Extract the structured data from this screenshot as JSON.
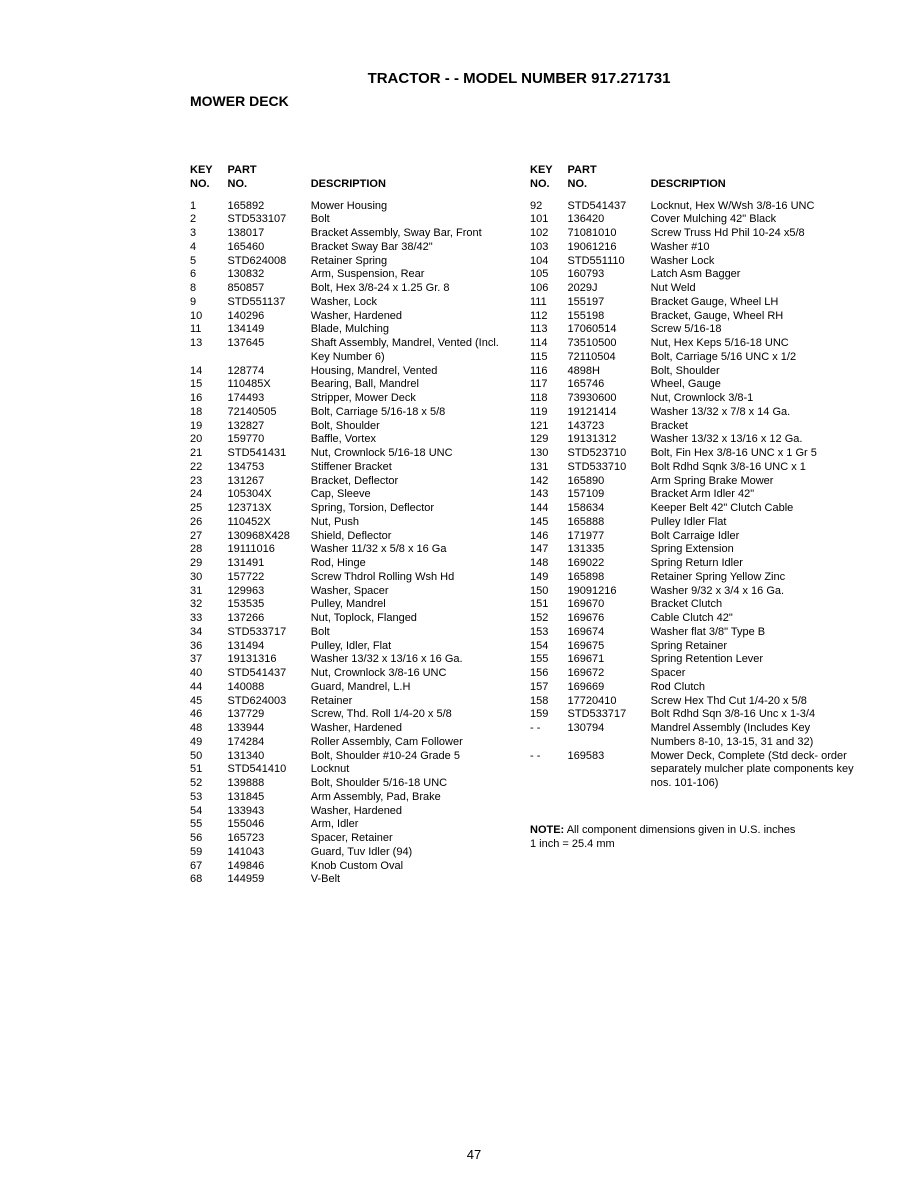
{
  "title": "TRACTOR - - MODEL NUMBER 917.271731",
  "subtitle": "MOWER DECK",
  "headers": {
    "key": "KEY NO.",
    "part": "PART NO.",
    "desc": "DESCRIPTION"
  },
  "page_number": "47",
  "note_line1": "NOTE: All component dimensions given in U.S. inches",
  "note_line2": "1 inch = 25.4 mm",
  "left": [
    {
      "key": "1",
      "part": "165892",
      "desc": "Mower Housing"
    },
    {
      "key": "2",
      "part": "STD533107",
      "desc": "Bolt"
    },
    {
      "key": "3",
      "part": "138017",
      "desc": "Bracket Assembly, Sway Bar, Front"
    },
    {
      "key": "4",
      "part": "165460",
      "desc": "Bracket Sway Bar 38/42\""
    },
    {
      "key": "5",
      "part": "STD624008",
      "desc": "Retainer Spring"
    },
    {
      "key": "6",
      "part": "130832",
      "desc": "Arm, Suspension, Rear"
    },
    {
      "key": "8",
      "part": "850857",
      "desc": "Bolt, Hex 3/8-24 x 1.25 Gr. 8"
    },
    {
      "key": "9",
      "part": "STD551137",
      "desc": "Washer, Lock"
    },
    {
      "key": "10",
      "part": "140296",
      "desc": "Washer, Hardened"
    },
    {
      "key": "11",
      "part": "134149",
      "desc": "Blade, Mulching"
    },
    {
      "key": "13",
      "part": "137645",
      "desc": "Shaft Assembly, Mandrel, Vented (Incl. Key Number 6)"
    },
    {
      "key": "14",
      "part": "128774",
      "desc": "Housing, Mandrel, Vented"
    },
    {
      "key": "15",
      "part": "110485X",
      "desc": "Bearing, Ball, Mandrel"
    },
    {
      "key": "16",
      "part": "174493",
      "desc": "Stripper, Mower Deck"
    },
    {
      "key": "18",
      "part": "72140505",
      "desc": "Bolt, Carriage 5/16-18 x 5/8"
    },
    {
      "key": "19",
      "part": "132827",
      "desc": "Bolt, Shoulder"
    },
    {
      "key": "20",
      "part": "159770",
      "desc": "Baffle, Vortex"
    },
    {
      "key": "21",
      "part": "STD541431",
      "desc": "Nut, Crownlock 5/16-18 UNC"
    },
    {
      "key": "22",
      "part": "134753",
      "desc": "Stiffener Bracket"
    },
    {
      "key": "23",
      "part": "131267",
      "desc": "Bracket, Deflector"
    },
    {
      "key": "24",
      "part": "105304X",
      "desc": "Cap, Sleeve"
    },
    {
      "key": "25",
      "part": "123713X",
      "desc": "Spring, Torsion, Deflector"
    },
    {
      "key": "26",
      "part": "110452X",
      "desc": "Nut, Push"
    },
    {
      "key": "27",
      "part": "130968X428",
      "desc": "Shield, Deflector"
    },
    {
      "key": "28",
      "part": "19111016",
      "desc": "Washer 11/32 x 5/8 x 16 Ga"
    },
    {
      "key": "29",
      "part": "131491",
      "desc": "Rod, Hinge"
    },
    {
      "key": "30",
      "part": "157722",
      "desc": "Screw Thdrol Rolling Wsh Hd"
    },
    {
      "key": "31",
      "part": "129963",
      "desc": "Washer, Spacer"
    },
    {
      "key": "32",
      "part": "153535",
      "desc": "Pulley, Mandrel"
    },
    {
      "key": "33",
      "part": "137266",
      "desc": "Nut, Toplock, Flanged"
    },
    {
      "key": "34",
      "part": "STD533717",
      "desc": "Bolt"
    },
    {
      "key": "36",
      "part": "131494",
      "desc": "Pulley, Idler, Flat"
    },
    {
      "key": "37",
      "part": "19131316",
      "desc": "Washer 13/32 x 13/16 x 16 Ga."
    },
    {
      "key": "40",
      "part": "STD541437",
      "desc": "Nut, Crownlock 3/8-16 UNC"
    },
    {
      "key": "44",
      "part": "140088",
      "desc": "Guard, Mandrel, L.H"
    },
    {
      "key": "45",
      "part": "STD624003",
      "desc": "Retainer"
    },
    {
      "key": "46",
      "part": "137729",
      "desc": "Screw, Thd. Roll 1/4-20 x 5/8"
    },
    {
      "key": "48",
      "part": "133944",
      "desc": "Washer, Hardened"
    },
    {
      "key": "49",
      "part": "174284",
      "desc": "Roller Assembly, Cam Follower"
    },
    {
      "key": "50",
      "part": "131340",
      "desc": "Bolt, Shoulder #10-24 Grade 5"
    },
    {
      "key": "51",
      "part": "STD541410",
      "desc": "Locknut"
    },
    {
      "key": "52",
      "part": "139888",
      "desc": "Bolt, Shoulder 5/16-18 UNC"
    },
    {
      "key": "53",
      "part": "131845",
      "desc": "Arm Assembly, Pad, Brake"
    },
    {
      "key": "54",
      "part": "133943",
      "desc": "Washer, Hardened"
    },
    {
      "key": "55",
      "part": "155046",
      "desc": "Arm, Idler"
    },
    {
      "key": "56",
      "part": "165723",
      "desc": "Spacer, Retainer"
    },
    {
      "key": "59",
      "part": "141043",
      "desc": "Guard, Tuv Idler (94)"
    },
    {
      "key": "67",
      "part": "149846",
      "desc": "Knob Custom Oval"
    },
    {
      "key": "68",
      "part": "144959",
      "desc": "V-Belt"
    }
  ],
  "right": [
    {
      "key": "92",
      "part": "STD541437",
      "desc": "Locknut, Hex W/Wsh 3/8-16 UNC"
    },
    {
      "key": "101",
      "part": "136420",
      "desc": "Cover Mulching 42\" Black"
    },
    {
      "key": "102",
      "part": "71081010",
      "desc": "Screw Truss Hd Phil 10-24 x5/8"
    },
    {
      "key": "103",
      "part": "19061216",
      "desc": "Washer #10"
    },
    {
      "key": "104",
      "part": "STD551110",
      "desc": "Washer Lock"
    },
    {
      "key": "105",
      "part": "160793",
      "desc": "Latch Asm Bagger"
    },
    {
      "key": "106",
      "part": "2029J",
      "desc": "Nut Weld"
    },
    {
      "key": "111",
      "part": "155197",
      "desc": "Bracket Gauge, Wheel LH"
    },
    {
      "key": "112",
      "part": "155198",
      "desc": "Bracket, Gauge, Wheel RH"
    },
    {
      "key": "113",
      "part": "17060514",
      "desc": "Screw 5/16-18"
    },
    {
      "key": "114",
      "part": "73510500",
      "desc": "Nut, Hex Keps 5/16-18 UNC"
    },
    {
      "key": "115",
      "part": "72110504",
      "desc": "Bolt, Carriage 5/16 UNC x 1/2"
    },
    {
      "key": "116",
      "part": "4898H",
      "desc": "Bolt, Shoulder"
    },
    {
      "key": "117",
      "part": "165746",
      "desc": "Wheel, Gauge"
    },
    {
      "key": "118",
      "part": "73930600",
      "desc": "Nut, Crownlock 3/8-1"
    },
    {
      "key": "119",
      "part": "19121414",
      "desc": "Washer 13/32 x 7/8 x 14 Ga."
    },
    {
      "key": "121",
      "part": "143723",
      "desc": "Bracket"
    },
    {
      "key": "129",
      "part": "19131312",
      "desc": "Washer 13/32 x 13/16 x 12 Ga."
    },
    {
      "key": "130",
      "part": "STD523710",
      "desc": "Bolt, Fin Hex 3/8-16 UNC x 1 Gr 5"
    },
    {
      "key": "131",
      "part": "STD533710",
      "desc": "Bolt Rdhd Sqnk 3/8-16 UNC x 1"
    },
    {
      "key": "142",
      "part": "165890",
      "desc": "Arm Spring Brake Mower"
    },
    {
      "key": "143",
      "part": "157109",
      "desc": "Bracket Arm Idler 42\""
    },
    {
      "key": "144",
      "part": "158634",
      "desc": "Keeper Belt 42\" Clutch Cable"
    },
    {
      "key": "145",
      "part": "165888",
      "desc": "Pulley Idler Flat"
    },
    {
      "key": "146",
      "part": "171977",
      "desc": "Bolt Carraige Idler"
    },
    {
      "key": "147",
      "part": "131335",
      "desc": "Spring Extension"
    },
    {
      "key": "148",
      "part": "169022",
      "desc": "Spring Return Idler"
    },
    {
      "key": "149",
      "part": "165898",
      "desc": "Retainer Spring Yellow Zinc"
    },
    {
      "key": "150",
      "part": "19091216",
      "desc": "Washer 9/32 x 3/4 x 16 Ga."
    },
    {
      "key": "151",
      "part": "169670",
      "desc": "Bracket Clutch"
    },
    {
      "key": "152",
      "part": "169676",
      "desc": "Cable Clutch 42\""
    },
    {
      "key": "153",
      "part": "169674",
      "desc": "Washer flat 3/8\" Type B"
    },
    {
      "key": "154",
      "part": "169675",
      "desc": "Spring Retainer"
    },
    {
      "key": "155",
      "part": "169671",
      "desc": "Spring Retention Lever"
    },
    {
      "key": "156",
      "part": "169672",
      "desc": "Spacer"
    },
    {
      "key": "157",
      "part": "169669",
      "desc": "Rod Clutch"
    },
    {
      "key": "158",
      "part": "17720410",
      "desc": "Screw Hex Thd Cut 1/4-20 x 5/8"
    },
    {
      "key": "159",
      "part": "STD533717",
      "desc": "Bolt Rdhd Sqn 3/8-16 Unc x 1-3/4"
    },
    {
      "key": "- -",
      "part": "130794",
      "desc": "Mandrel Assembly (Includes Key Numbers 8-10, 13-15, 31 and 32)"
    },
    {
      "key": "- -",
      "part": "169583",
      "desc": "Mower Deck, Complete (Std deck- order separately mulcher plate components key nos. 101-106)"
    }
  ]
}
